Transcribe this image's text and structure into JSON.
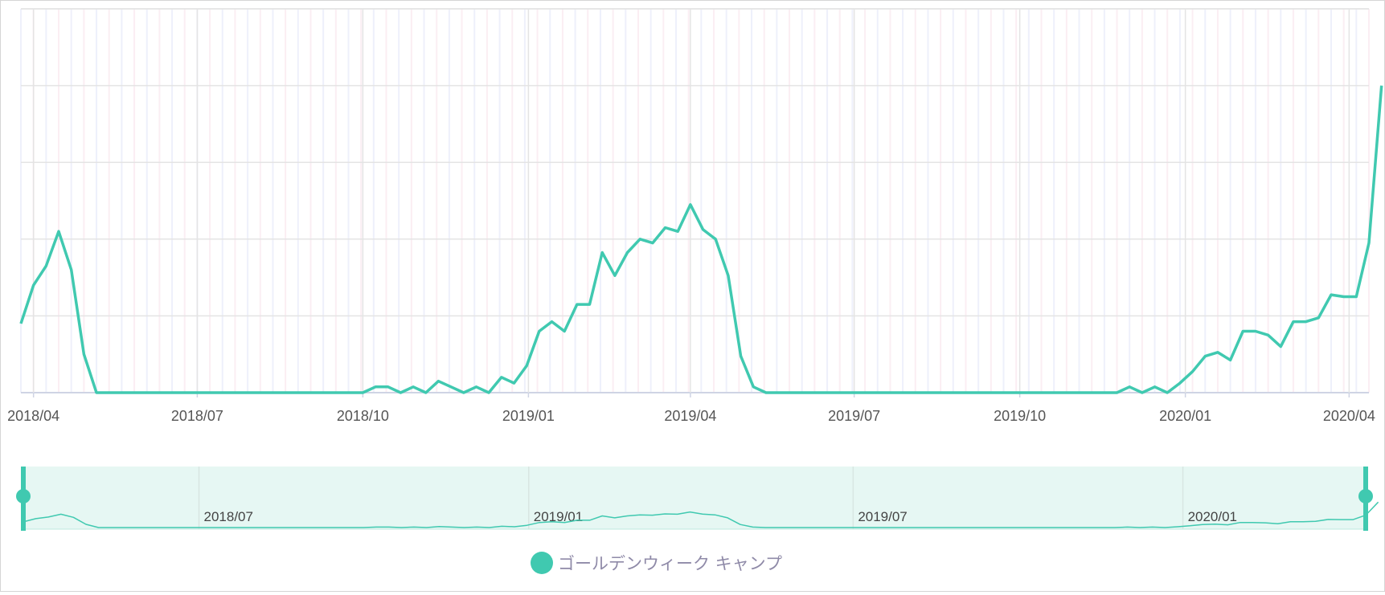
{
  "colors": {
    "series": "#40c9b0",
    "grid": "#e4e4e4",
    "axis": "#cfd4e4",
    "slider_fill": "#e6f7f3"
  },
  "legend": {
    "label": "ゴールデンウィーク キャンプ"
  },
  "chart_data": {
    "type": "line",
    "title": "",
    "xlabel": "",
    "ylabel": "",
    "grid": true,
    "legend_position": "bottom-center",
    "x_range": [
      "2018-03-25",
      "2020-04-12"
    ],
    "y_range": [
      0,
      100
    ],
    "x_ticks": [
      {
        "date": "2018-04-01",
        "label": "2018/04"
      },
      {
        "date": "2018-07-01",
        "label": "2018/07"
      },
      {
        "date": "2018-10-01",
        "label": "2018/10"
      },
      {
        "date": "2019-01-01",
        "label": "2019/01"
      },
      {
        "date": "2019-04-01",
        "label": "2019/04"
      },
      {
        "date": "2019-07-01",
        "label": "2019/07"
      },
      {
        "date": "2019-10-01",
        "label": "2019/10"
      },
      {
        "date": "2020-01-01",
        "label": "2020/01"
      },
      {
        "date": "2020-04-01",
        "label": "2020/04"
      }
    ],
    "navigator": {
      "selection": [
        "2018-03-25",
        "2020-04-12"
      ],
      "x_ticks": [
        {
          "date": "2018-07-01",
          "label": "2018/07"
        },
        {
          "date": "2019-01-01",
          "label": "2019/01"
        },
        {
          "date": "2019-07-01",
          "label": "2019/07"
        },
        {
          "date": "2020-01-01",
          "label": "2020/01"
        }
      ]
    },
    "series": [
      {
        "name": "ゴールデンウィーク キャンプ",
        "points": [
          [
            "2018-03-25",
            18
          ],
          [
            "2018-04-01",
            28
          ],
          [
            "2018-04-08",
            33
          ],
          [
            "2018-04-15",
            42
          ],
          [
            "2018-04-22",
            32
          ],
          [
            "2018-04-29",
            10
          ],
          [
            "2018-05-06",
            0
          ],
          [
            "2018-05-13",
            0
          ],
          [
            "2018-10-01",
            0
          ],
          [
            "2018-10-08",
            1.5
          ],
          [
            "2018-10-15",
            1.5
          ],
          [
            "2018-10-22",
            0
          ],
          [
            "2018-10-29",
            1.5
          ],
          [
            "2018-11-05",
            0
          ],
          [
            "2018-11-12",
            3
          ],
          [
            "2018-11-19",
            1.5
          ],
          [
            "2018-11-26",
            0
          ],
          [
            "2018-12-03",
            1.5
          ],
          [
            "2018-12-10",
            0
          ],
          [
            "2018-12-17",
            4
          ],
          [
            "2018-12-24",
            2.5
          ],
          [
            "2018-12-31",
            7
          ],
          [
            "2019-01-07",
            16
          ],
          [
            "2019-01-14",
            18.5
          ],
          [
            "2019-01-21",
            16
          ],
          [
            "2019-01-28",
            23
          ],
          [
            "2019-02-04",
            23
          ],
          [
            "2019-02-11",
            36.5
          ],
          [
            "2019-02-18",
            30.5
          ],
          [
            "2019-02-25",
            36.5
          ],
          [
            "2019-03-04",
            40
          ],
          [
            "2019-03-11",
            39
          ],
          [
            "2019-03-18",
            43
          ],
          [
            "2019-03-25",
            42
          ],
          [
            "2019-04-01",
            49
          ],
          [
            "2019-04-08",
            42.5
          ],
          [
            "2019-04-15",
            40
          ],
          [
            "2019-04-22",
            30.5
          ],
          [
            "2019-04-29",
            9.5
          ],
          [
            "2019-05-06",
            1.5
          ],
          [
            "2019-05-13",
            0
          ],
          [
            "2019-11-24",
            0
          ],
          [
            "2019-12-01",
            1.5
          ],
          [
            "2019-12-08",
            0
          ],
          [
            "2019-12-15",
            1.5
          ],
          [
            "2019-12-22",
            0
          ],
          [
            "2019-12-29",
            2.5
          ],
          [
            "2020-01-05",
            5.5
          ],
          [
            "2020-01-12",
            9.5
          ],
          [
            "2020-01-19",
            10.5
          ],
          [
            "2020-01-26",
            8.5
          ],
          [
            "2020-02-02",
            16
          ],
          [
            "2020-02-09",
            16
          ],
          [
            "2020-02-16",
            15
          ],
          [
            "2020-02-23",
            12
          ],
          [
            "2020-03-01",
            18.5
          ],
          [
            "2020-03-08",
            18.5
          ],
          [
            "2020-03-15",
            19.5
          ],
          [
            "2020-03-22",
            25.5
          ],
          [
            "2020-03-29",
            25
          ],
          [
            "2020-04-05",
            25
          ],
          [
            "2020-04-12",
            39
          ],
          [
            "2020-04-19",
            80
          ]
        ]
      }
    ]
  }
}
